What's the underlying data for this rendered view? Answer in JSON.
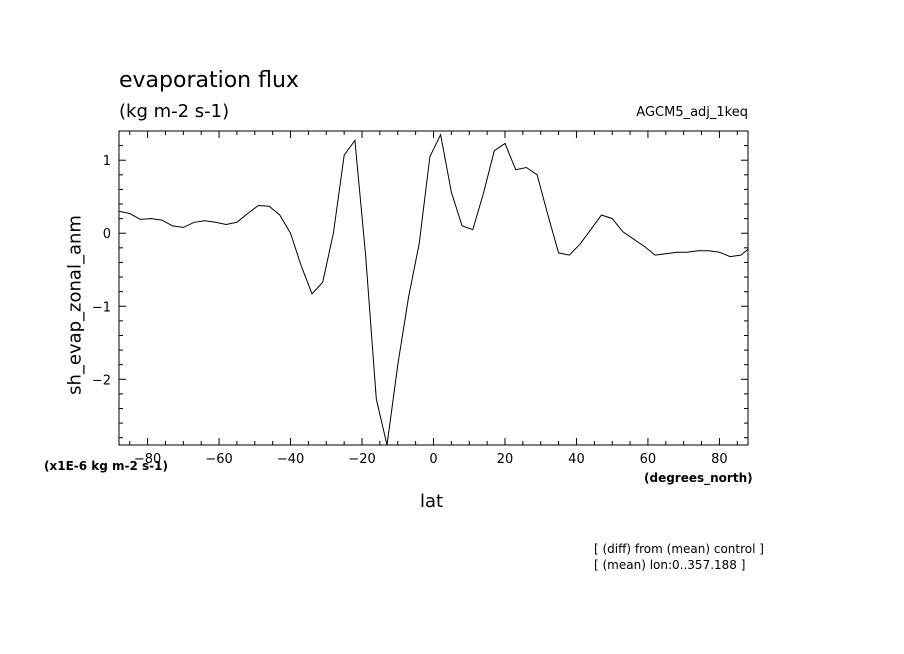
{
  "chart_data": {
    "type": "line",
    "title": "evaporation flux",
    "subtitle": "(kg m-2 s-1)",
    "run_label": "AGCM5_adj_1keq",
    "xlabel": "lat",
    "ylabel": "sh_evap_zonal_anm",
    "x_units": "(degrees_north)",
    "y_scale_label": "(x1E-6 kg m-2 s-1)",
    "notes": [
      "[ (diff) from (mean) control ]",
      "[ (mean) lon:0..357.188 ]"
    ],
    "xlim": [
      -88,
      88
    ],
    "ylim": [
      -2.9,
      1.4
    ],
    "x_ticks": [
      -80,
      -60,
      -40,
      -20,
      0,
      20,
      40,
      60,
      80
    ],
    "y_ticks": [
      -2,
      -1,
      0,
      1
    ],
    "grid": false,
    "series": [
      {
        "x": [
          -88,
          -85,
          -82,
          -79,
          -76,
          -73,
          -70,
          -67,
          -64,
          -61,
          -58,
          -55,
          -52,
          -49,
          -46,
          -43,
          -40,
          -37,
          -34,
          -31,
          -28,
          -25,
          -22,
          -19,
          -16,
          -13,
          -10,
          -7,
          -4,
          -1,
          2,
          5,
          8,
          11,
          14,
          17,
          20,
          23,
          26,
          29,
          32,
          35,
          38,
          41,
          44,
          47,
          50,
          53,
          56,
          59,
          62,
          65,
          68,
          71,
          74,
          77,
          80,
          83,
          86,
          88
        ],
        "values": [
          0.3,
          0.27,
          0.19,
          0.2,
          0.18,
          0.1,
          0.08,
          0.15,
          0.17,
          0.15,
          0.12,
          0.15,
          0.27,
          0.38,
          0.37,
          0.25,
          0.0,
          -0.45,
          -0.83,
          -0.67,
          0.0,
          1.07,
          1.27,
          -0.3,
          -2.27,
          -2.9,
          -1.8,
          -0.88,
          -0.14,
          1.05,
          1.35,
          0.56,
          0.1,
          0.05,
          0.55,
          1.13,
          1.23,
          0.87,
          0.9,
          0.8,
          0.25,
          -0.27,
          -0.3,
          -0.15,
          0.05,
          0.25,
          0.2,
          0.02,
          -0.08,
          -0.18,
          -0.3,
          -0.28,
          -0.26,
          -0.26,
          -0.24,
          -0.24,
          -0.26,
          -0.32,
          -0.3,
          -0.22
        ]
      }
    ]
  }
}
